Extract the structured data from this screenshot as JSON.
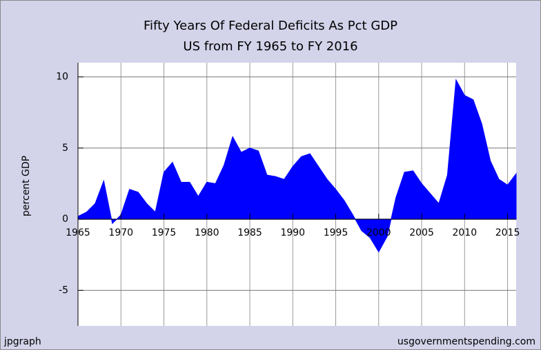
{
  "chart_data": {
    "type": "area",
    "title": "Fifty Years Of Federal Deficits As Pct GDP",
    "subtitle": "US from FY 1965 to FY 2016",
    "y_label": "percent GDP",
    "footer_left": "jpgraph",
    "footer_right": "usgovernmentspending.com",
    "color": "#0000ff",
    "x": [
      1965,
      1966,
      1967,
      1968,
      1969,
      1970,
      1971,
      1972,
      1973,
      1974,
      1975,
      1976,
      1977,
      1978,
      1979,
      1980,
      1981,
      1982,
      1983,
      1984,
      1985,
      1986,
      1987,
      1988,
      1989,
      1990,
      1991,
      1992,
      1993,
      1994,
      1995,
      1996,
      1997,
      1998,
      1999,
      2000,
      2001,
      2002,
      2003,
      2004,
      2005,
      2006,
      2007,
      2008,
      2009,
      2010,
      2011,
      2012,
      2013,
      2014,
      2015,
      2016
    ],
    "values": [
      0.2,
      0.5,
      1.1,
      2.7,
      -0.3,
      0.3,
      2.1,
      1.9,
      1.1,
      0.5,
      3.3,
      4.0,
      2.6,
      2.6,
      1.6,
      2.6,
      2.5,
      3.8,
      5.8,
      4.7,
      5.0,
      4.8,
      3.1,
      3.0,
      2.8,
      3.7,
      4.4,
      4.6,
      3.7,
      2.8,
      2.1,
      1.3,
      0.3,
      -0.8,
      -1.3,
      -2.3,
      -1.2,
      1.5,
      3.3,
      3.4,
      2.5,
      1.8,
      1.1,
      3.1,
      9.8,
      8.7,
      8.4,
      6.7,
      4.1,
      2.8,
      2.4,
      3.2
    ],
    "xlim": [
      1965,
      2016
    ],
    "xticks": [
      1965,
      1970,
      1975,
      1980,
      1985,
      1990,
      1995,
      2000,
      2005,
      2010,
      2015
    ],
    "ylim": [
      -7.5,
      11
    ],
    "yticks": [
      -5,
      0,
      5,
      10
    ],
    "grid": true
  }
}
